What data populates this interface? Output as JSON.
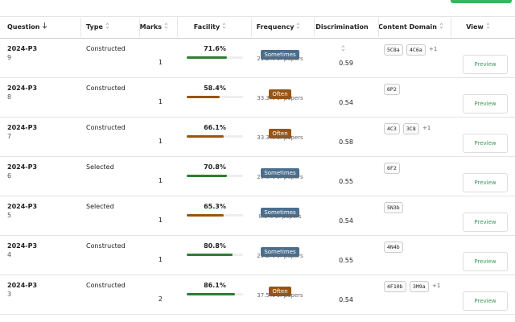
{
  "header": {
    "columns": [
      "Question",
      "Type",
      "Marks",
      "Facility",
      "Frequency",
      "Discrimination",
      "Content Domain",
      "View"
    ]
  },
  "table": {
    "rows": [
      {
        "question": "2024-P3",
        "number": 9,
        "type": "Constructed",
        "marks": 1,
        "facility": {
          "value": 71.6,
          "label": "71.6%"
        },
        "bar_color": "#2e7d32",
        "frequency": "Sometimes",
        "frequency_color": "#4a6f8e",
        "papers": "29.2% of papers",
        "discrimination": "0.59",
        "domains": [
          "5C8a",
          "4C6a"
        ],
        "more": "+1",
        "view": "Preview"
      },
      {
        "question": "2024-P3",
        "number": 8,
        "type": "Constructed",
        "marks": 1,
        "facility": {
          "value": 58.4,
          "label": "58.4%"
        },
        "bar_color": "#9a5410",
        "frequency": "Often",
        "frequency_color": "#9a5410",
        "papers": "33.3% of papers",
        "discrimination": "0.54",
        "domains": [
          "6P2"
        ],
        "view": "Preview"
      },
      {
        "question": "2024-P3",
        "number": 7,
        "type": "Constructed",
        "marks": 1,
        "facility": {
          "value": 66.1,
          "label": "66.1%"
        },
        "bar_color": "#9a5410",
        "frequency": "Often",
        "frequency_color": "#9a5410",
        "papers": "33.3% of papers",
        "discrimination": "0.58",
        "domains": [
          "4C3",
          "3C8"
        ],
        "more": "+1",
        "view": "Preview"
      },
      {
        "question": "2024-P3",
        "number": 6,
        "type": "Selected",
        "marks": 1,
        "facility": {
          "value": 70.8,
          "label": "70.8%"
        },
        "bar_color": "#2e7d32",
        "frequency": "Sometimes",
        "frequency_color": "#4a6f8e",
        "papers": "25.0% of papers",
        "discrimination": "0.55",
        "domains": [
          "6F2"
        ],
        "view": "Preview"
      },
      {
        "question": "2024-P3",
        "number": 5,
        "type": "Selected",
        "marks": 1,
        "facility": {
          "value": 65.3,
          "label": "65.3%"
        },
        "bar_color": "#9a5410",
        "frequency": "Sometimes",
        "frequency_color": "#4a6f8e",
        "papers": "8.3% of papers",
        "discrimination": "0.54",
        "domains": [
          "5N3b"
        ],
        "view": "Preview"
      },
      {
        "question": "2024-P3",
        "number": 4,
        "type": "Constructed",
        "marks": 1,
        "facility": {
          "value": 80.8,
          "label": "80.8%"
        },
        "bar_color": "#2e7d32",
        "frequency": "Sometimes",
        "frequency_color": "#4a6f8e",
        "papers": "29.2% of papers",
        "discrimination": "0.55",
        "domains": [
          "4N4b"
        ],
        "view": "Preview"
      },
      {
        "question": "2024-P3",
        "number": 3,
        "type": "Constructed",
        "marks": 2,
        "facility": {
          "value": 86.1,
          "label": "86.1%"
        },
        "bar_color": "#2e7d32",
        "frequency": "Often",
        "frequency_color": "#9a5410",
        "papers": "37.5% of papers",
        "discrimination": "0.54",
        "domains": [
          "4F10b",
          "3M9a"
        ],
        "more": "+1",
        "view": "Preview"
      }
    ]
  }
}
